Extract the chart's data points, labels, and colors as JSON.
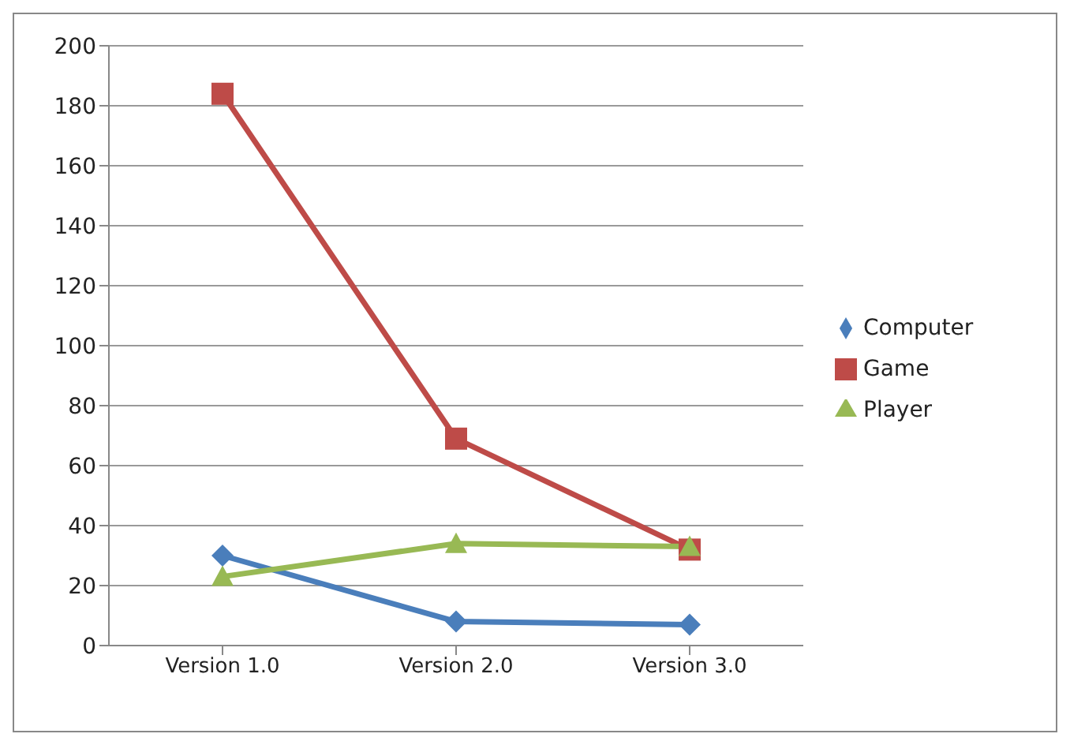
{
  "chart_data": {
    "type": "line",
    "categories": [
      "Version 1.0",
      "Version 2.0",
      "Version 3.0"
    ],
    "series": [
      {
        "name": "Computer",
        "color": "#4a7ebb",
        "marker": "diamond",
        "values": [
          30,
          8,
          7
        ]
      },
      {
        "name": "Game",
        "color": "#be4b48",
        "marker": "square",
        "values": [
          184,
          69,
          32
        ]
      },
      {
        "name": "Player",
        "color": "#98b954",
        "marker": "triangle",
        "values": [
          23,
          34,
          33
        ]
      }
    ],
    "ylim": [
      0,
      200
    ],
    "yticks": [
      0,
      20,
      40,
      60,
      80,
      100,
      120,
      140,
      160,
      180,
      200
    ],
    "grid": "y",
    "legend": "right"
  }
}
